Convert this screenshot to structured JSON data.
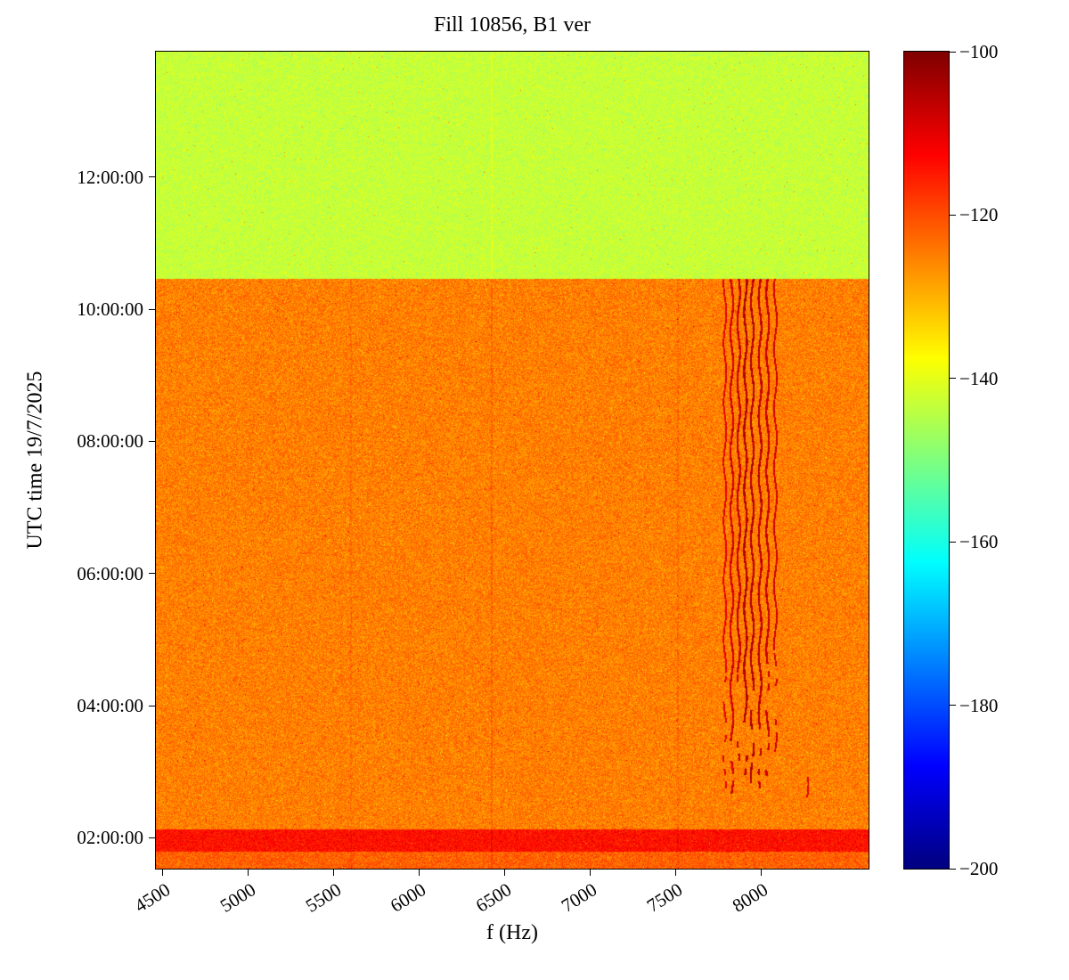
{
  "chart_data": {
    "type": "heatmap",
    "title": "Fill 10856, B1 ver",
    "xlabel": "f (Hz)",
    "ylabel": "UTC time 19/7/2025",
    "colormap": "jet",
    "grid": false,
    "x_range_hz": [
      4460,
      8630
    ],
    "x_ticks": {
      "values": [
        4500,
        5000,
        5500,
        6000,
        6500,
        7000,
        7500,
        8000
      ],
      "labels": [
        "4500",
        "5000",
        "5500",
        "6000",
        "6500",
        "7000",
        "7500",
        "8000"
      ]
    },
    "y_range_utc": [
      "01:32:00",
      "13:54:00"
    ],
    "y_ticks": {
      "values": [
        "02:00:00",
        "04:00:00",
        "06:00:00",
        "08:00:00",
        "10:00:00",
        "12:00:00"
      ],
      "labels": [
        "02:00:00",
        "04:00:00",
        "06:00:00",
        "08:00:00",
        "10:00:00",
        "12:00:00"
      ]
    },
    "colorbar": {
      "min": -200,
      "max": -100,
      "tick_values": [
        -100,
        -120,
        -140,
        -160,
        -180,
        -200
      ],
      "tick_labels": [
        "−100",
        "−120",
        "−140",
        "−160",
        "−180",
        "−200"
      ]
    },
    "regions": [
      {
        "name": "beam-circulating-background",
        "t_start": "01:32:00",
        "t_end": "10:28:00",
        "level_db": -125,
        "noise_db": 5
      },
      {
        "name": "post-dump-background",
        "t_start": "10:28:00",
        "t_end": "13:54:00",
        "level_db": -143,
        "noise_db": 3.5
      },
      {
        "name": "pre-band-background",
        "t_start": "01:32:00",
        "t_end": "01:47:00",
        "level_db": -122,
        "noise_db": 5
      },
      {
        "name": "hot-horizontal-band-0200",
        "t_start": "01:47:00",
        "t_end": "02:08:00",
        "level_db": -114,
        "noise_db": 4
      }
    ],
    "vertical_stripes": [
      {
        "f_hz": 5600,
        "half_width_hz": 5,
        "delta_db": 1.5,
        "t_start": "01:32:00",
        "t_end": "10:28:00"
      },
      {
        "f_hz": 6425,
        "half_width_hz": 6,
        "delta_db": 2.5,
        "t_start": "01:32:00",
        "t_end": "13:54:00"
      },
      {
        "f_hz": 7515,
        "half_width_hz": 5,
        "delta_db": 2.0,
        "t_start": "01:32:00",
        "t_end": "10:28:00"
      }
    ],
    "harmonic_lines": [
      {
        "f_hz": 7790,
        "half_width_hz": 5,
        "t_dash_start": "02:45:00",
        "t_full_start": "04:30:00",
        "t_end": "10:28:00",
        "level_db": -110
      },
      {
        "f_hz": 7830,
        "half_width_hz": 6,
        "t_dash_start": "02:40:00",
        "t_full_start": "03:40:00",
        "t_end": "10:28:00",
        "level_db": -108
      },
      {
        "f_hz": 7870,
        "half_width_hz": 6,
        "t_dash_start": "02:40:00",
        "t_full_start": "04:30:00",
        "t_end": "10:28:00",
        "level_db": -107
      },
      {
        "f_hz": 7910,
        "half_width_hz": 6,
        "t_dash_start": "02:45:00",
        "t_full_start": "03:45:00",
        "t_end": "10:28:00",
        "level_db": -105
      },
      {
        "f_hz": 7950,
        "half_width_hz": 6,
        "t_dash_start": "02:50:00",
        "t_full_start": "04:35:00",
        "t_end": "10:28:00",
        "level_db": -105
      },
      {
        "f_hz": 7995,
        "half_width_hz": 6,
        "t_dash_start": "02:45:00",
        "t_full_start": "03:40:00",
        "t_end": "10:28:00",
        "level_db": -106
      },
      {
        "f_hz": 8040,
        "half_width_hz": 6,
        "t_dash_start": "02:50:00",
        "t_full_start": "04:40:00",
        "t_end": "10:28:00",
        "level_db": -107
      },
      {
        "f_hz": 8085,
        "half_width_hz": 5,
        "t_dash_start": "03:00:00",
        "t_full_start": "04:50:00",
        "t_end": "10:28:00",
        "level_db": -108
      },
      {
        "f_hz": 8270,
        "half_width_hz": 5,
        "t_dash_start": "02:25:00",
        "t_full_start": "02:55:00",
        "t_end": "02:55:00",
        "level_db": -110
      }
    ]
  }
}
